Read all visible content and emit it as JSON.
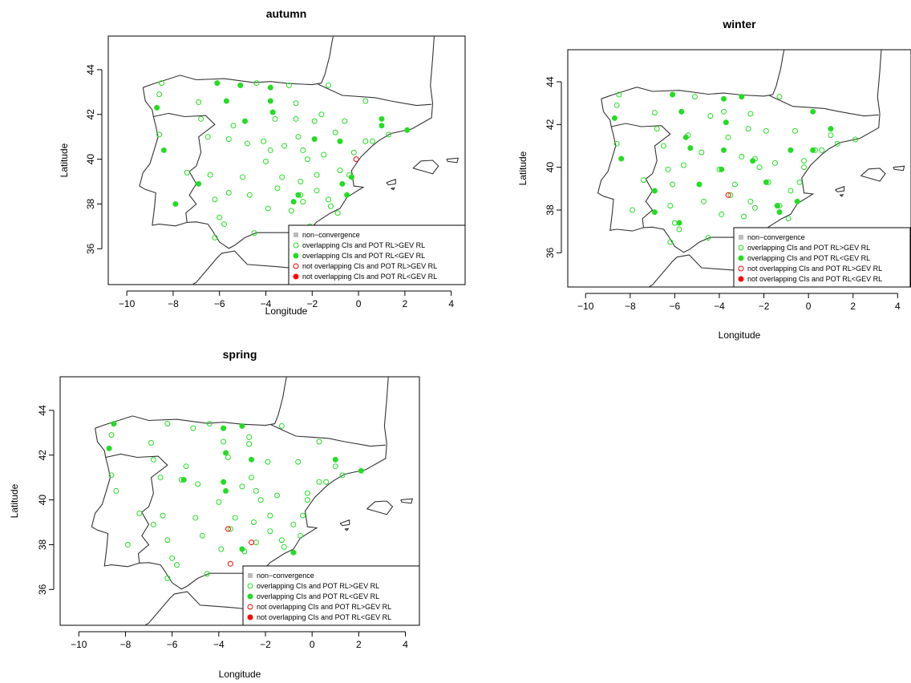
{
  "panels": [
    {
      "title": "autumn",
      "xlabel": "Longitude",
      "ylabel": "Latitude",
      "xlim": [
        -10.8,
        4.6
      ],
      "ylim": [
        34.4,
        45.5
      ],
      "xticks": [
        "−10",
        "−8",
        "−6",
        "−4",
        "−2",
        "0",
        "2",
        "4"
      ],
      "yticks": [
        "36",
        "38",
        "40",
        "42",
        "44"
      ],
      "legend": [
        "non−convergence",
        "overlapping CIs and POT RL>GEV RL",
        "overlapping CIs and POT RL<GEV RL",
        "not overlapping CIs and POT RL>GEV RL",
        "not overlapping CIs and POT RL<GEV RL"
      ],
      "legend_position": "bottom-right",
      "stations": {
        "overlap_pot_gt_gev": [
          [
            -8.5,
            43.4
          ],
          [
            -8.6,
            42.9
          ],
          [
            -8.6,
            41.1
          ],
          [
            -7.4,
            39.4
          ],
          [
            -6.9,
            42.55
          ],
          [
            -6.8,
            41.8
          ],
          [
            -6.5,
            41.0
          ],
          [
            -6.4,
            39.3
          ],
          [
            -6.2,
            38.2
          ],
          [
            -6.0,
            37.4
          ],
          [
            -6.2,
            36.5
          ],
          [
            -5.8,
            37.1
          ],
          [
            -5.6,
            40.9
          ],
          [
            -5.4,
            41.5
          ],
          [
            -5.0,
            39.2
          ],
          [
            -4.8,
            40.7
          ],
          [
            -4.7,
            38.4
          ],
          [
            -4.5,
            36.7
          ],
          [
            -4.4,
            43.4
          ],
          [
            -4.1,
            40.8
          ],
          [
            -4.0,
            39.9
          ],
          [
            -3.9,
            37.8
          ],
          [
            -3.8,
            40.4
          ],
          [
            -3.6,
            41.8
          ],
          [
            -3.5,
            38.7
          ],
          [
            -3.3,
            39.2
          ],
          [
            -3.2,
            40.6
          ],
          [
            -3.0,
            43.3
          ],
          [
            -2.9,
            37.7
          ],
          [
            -2.7,
            42.5
          ],
          [
            -2.7,
            41.8
          ],
          [
            -2.5,
            39.0
          ],
          [
            -2.4,
            40.4
          ],
          [
            -2.4,
            38.1
          ],
          [
            -2.2,
            40.0
          ],
          [
            -2.1,
            37.0
          ],
          [
            -1.9,
            41.7
          ],
          [
            -1.8,
            39.3
          ],
          [
            -1.8,
            38.6
          ],
          [
            -1.5,
            40.2
          ],
          [
            -1.3,
            38.2
          ],
          [
            -1.2,
            37.9
          ],
          [
            -1.0,
            41.2
          ],
          [
            -0.8,
            39.5
          ],
          [
            -0.9,
            37.6
          ],
          [
            -0.6,
            41.7
          ],
          [
            -0.4,
            39.3
          ],
          [
            -0.2,
            40.3
          ],
          [
            0.3,
            42.6
          ],
          [
            0.3,
            40.8
          ],
          [
            0.6,
            40.8
          ],
          [
            1.3,
            41.1
          ],
          [
            -1.3,
            43.3
          ],
          [
            -5.6,
            38.5
          ],
          [
            -2.5,
            38.4
          ],
          [
            -1.6,
            42.0
          ],
          [
            -2.6,
            41.0
          ]
        ],
        "overlap_pot_lt_gev": [
          [
            -8.7,
            42.3
          ],
          [
            -8.4,
            40.4
          ],
          [
            -7.9,
            38.0
          ],
          [
            -6.9,
            38.9
          ],
          [
            -6.1,
            43.4
          ],
          [
            -5.7,
            42.6
          ],
          [
            -5.1,
            43.3
          ],
          [
            -4.9,
            41.7
          ],
          [
            -3.8,
            43.2
          ],
          [
            -3.8,
            42.6
          ],
          [
            -3.7,
            42.1
          ],
          [
            -2.6,
            38.4
          ],
          [
            -2.8,
            38.1
          ],
          [
            -1.9,
            40.9
          ],
          [
            -0.8,
            40.8
          ],
          [
            -0.5,
            38.4
          ],
          [
            -0.7,
            38.9
          ],
          [
            -0.3,
            39.2
          ],
          [
            1.0,
            41.8
          ],
          [
            2.1,
            41.3
          ],
          [
            1.0,
            41.5
          ]
        ],
        "not_overlap_pot_gt_gev": [
          [
            -0.1,
            40.0
          ]
        ],
        "not_overlap_pot_lt_gev": []
      }
    },
    {
      "title": "winter",
      "xlabel": "Longitude",
      "ylabel": "Latitude",
      "xlim": [
        -10.8,
        4.6
      ],
      "ylim": [
        34.4,
        45.5
      ],
      "xticks": [
        "−10",
        "−8",
        "−6",
        "−4",
        "−2",
        "0",
        "2",
        "4"
      ],
      "yticks": [
        "36",
        "38",
        "40",
        "42",
        "44"
      ],
      "legend": [
        "non−convergence",
        "overlapping CIs and POT RL>GEV RL",
        "overlapping CIs and POT RL<GEV RL",
        "not overlapping CIs and POT RL>GEV RL",
        "not overlapping CIs and POT RL<GEV RL"
      ],
      "legend_position": "bottom-right",
      "stations": {
        "overlap_pot_gt_gev": [
          [
            -8.6,
            42.9
          ],
          [
            -8.6,
            41.1
          ],
          [
            -7.4,
            39.4
          ],
          [
            -7.9,
            38.0
          ],
          [
            -6.9,
            42.55
          ],
          [
            -6.8,
            41.8
          ],
          [
            -6.5,
            41.0
          ],
          [
            -6.2,
            38.2
          ],
          [
            -6.1,
            39.2
          ],
          [
            -6.0,
            37.4
          ],
          [
            -6.2,
            36.5
          ],
          [
            -5.8,
            37.1
          ],
          [
            -5.6,
            40.1
          ],
          [
            -5.4,
            41.5
          ],
          [
            -5.1,
            43.3
          ],
          [
            -4.8,
            40.7
          ],
          [
            -4.7,
            38.4
          ],
          [
            -4.5,
            36.7
          ],
          [
            -4.4,
            42.4
          ],
          [
            -4.0,
            39.9
          ],
          [
            -3.9,
            37.8
          ],
          [
            -3.8,
            42.6
          ],
          [
            -3.6,
            41.4
          ],
          [
            -3.5,
            38.7
          ],
          [
            -3.3,
            39.2
          ],
          [
            -3.0,
            40.5
          ],
          [
            -2.9,
            37.7
          ],
          [
            -2.7,
            41.8
          ],
          [
            -2.6,
            38.4
          ],
          [
            -2.4,
            40.4
          ],
          [
            -2.4,
            38.1
          ],
          [
            -2.2,
            40.0
          ],
          [
            -1.9,
            41.7
          ],
          [
            -1.8,
            39.3
          ],
          [
            -1.5,
            40.2
          ],
          [
            -1.3,
            38.2
          ],
          [
            -0.9,
            37.6
          ],
          [
            -0.6,
            41.7
          ],
          [
            -0.8,
            38.9
          ],
          [
            -0.4,
            39.3
          ],
          [
            -0.2,
            40.3
          ],
          [
            -0.2,
            40.0
          ],
          [
            0.3,
            40.8
          ],
          [
            0.6,
            40.8
          ],
          [
            1.3,
            41.1
          ],
          [
            1.0,
            41.5
          ],
          [
            2.1,
            41.3
          ],
          [
            -1.3,
            43.3
          ],
          [
            -8.5,
            43.4
          ],
          [
            -6.3,
            39.9
          ],
          [
            -2.6,
            42.5
          ]
        ],
        "overlap_pot_lt_gev": [
          [
            -8.7,
            42.3
          ],
          [
            -8.4,
            40.4
          ],
          [
            -6.9,
            38.9
          ],
          [
            -6.9,
            37.9
          ],
          [
            -6.1,
            43.4
          ],
          [
            -5.7,
            42.6
          ],
          [
            -5.5,
            41.4
          ],
          [
            -5.3,
            40.9
          ],
          [
            -4.9,
            39.2
          ],
          [
            -3.8,
            43.2
          ],
          [
            -3.7,
            42.1
          ],
          [
            -3.8,
            40.8
          ],
          [
            -3.9,
            39.9
          ],
          [
            -3.0,
            43.3
          ],
          [
            -1.9,
            39.3
          ],
          [
            -1.4,
            38.2
          ],
          [
            -1.3,
            37.9
          ],
          [
            -0.8,
            40.8
          ],
          [
            -0.5,
            38.4
          ],
          [
            1.0,
            41.8
          ],
          [
            0.2,
            40.8
          ],
          [
            0.2,
            42.6
          ],
          [
            -2.5,
            40.3
          ],
          [
            -5.8,
            37.4
          ]
        ],
        "not_overlap_pot_gt_gev": [
          [
            -3.6,
            38.7
          ]
        ],
        "not_overlap_pot_lt_gev": []
      }
    },
    {
      "title": "spring",
      "xlabel": "Longitude",
      "ylabel": "Latitude",
      "xlim": [
        -10.8,
        4.6
      ],
      "ylim": [
        34.4,
        45.5
      ],
      "xticks": [
        "−10",
        "−8",
        "−6",
        "−4",
        "−2",
        "0",
        "2",
        "4"
      ],
      "yticks": [
        "36",
        "38",
        "40",
        "42",
        "44"
      ],
      "legend": [
        "non−convergence",
        "overlapping CIs and POT RL>GEV RL",
        "overlapping CIs and POT RL<GEV RL",
        "not overlapping CIs and POT RL>GEV RL",
        "not overlapping CIs and POT RL<GEV RL"
      ],
      "legend_position": "bottom-right",
      "stations": {
        "overlap_pot_gt_gev": [
          [
            -8.6,
            42.9
          ],
          [
            -8.6,
            41.1
          ],
          [
            -8.4,
            40.4
          ],
          [
            -7.4,
            39.4
          ],
          [
            -7.9,
            38.0
          ],
          [
            -6.9,
            42.55
          ],
          [
            -6.8,
            41.8
          ],
          [
            -6.8,
            38.9
          ],
          [
            -6.5,
            41.0
          ],
          [
            -6.4,
            39.3
          ],
          [
            -6.2,
            43.4
          ],
          [
            -6.2,
            38.2
          ],
          [
            -6.0,
            37.4
          ],
          [
            -6.2,
            36.5
          ],
          [
            -5.8,
            37.1
          ],
          [
            -5.6,
            40.9
          ],
          [
            -5.4,
            41.5
          ],
          [
            -5.0,
            39.2
          ],
          [
            -4.9,
            40.7
          ],
          [
            -4.7,
            38.4
          ],
          [
            -4.5,
            36.7
          ],
          [
            -5.1,
            43.2
          ],
          [
            -4.4,
            43.4
          ],
          [
            -3.8,
            42.6
          ],
          [
            -4.0,
            39.9
          ],
          [
            -3.9,
            37.8
          ],
          [
            -3.6,
            41.9
          ],
          [
            -3.5,
            38.7
          ],
          [
            -3.3,
            39.2
          ],
          [
            -3.0,
            40.6
          ],
          [
            -2.9,
            37.7
          ],
          [
            -2.7,
            42.5
          ],
          [
            -2.5,
            39.0
          ],
          [
            -2.4,
            40.4
          ],
          [
            -2.4,
            38.1
          ],
          [
            -2.2,
            40.0
          ],
          [
            -1.9,
            41.7
          ],
          [
            -1.8,
            39.3
          ],
          [
            -1.8,
            38.6
          ],
          [
            -1.5,
            40.2
          ],
          [
            -1.3,
            38.2
          ],
          [
            -1.2,
            37.9
          ],
          [
            -0.6,
            41.7
          ],
          [
            -0.4,
            39.3
          ],
          [
            -0.2,
            40.3
          ],
          [
            -0.2,
            40.0
          ],
          [
            0.3,
            42.6
          ],
          [
            0.3,
            40.8
          ],
          [
            0.6,
            40.8
          ],
          [
            1.3,
            41.1
          ],
          [
            1.0,
            41.5
          ],
          [
            -1.3,
            43.3
          ],
          [
            -0.8,
            38.9
          ],
          [
            -0.5,
            38.4
          ],
          [
            -2.7,
            42.8
          ],
          [
            -2.6,
            41.0
          ]
        ],
        "overlap_pot_lt_gev": [
          [
            -8.5,
            43.4
          ],
          [
            -8.7,
            42.3
          ],
          [
            -5.5,
            40.9
          ],
          [
            -3.8,
            43.2
          ],
          [
            -3.7,
            42.1
          ],
          [
            -3.8,
            40.8
          ],
          [
            -3.7,
            40.4
          ],
          [
            -3.0,
            43.3
          ],
          [
            -2.6,
            41.8
          ],
          [
            -3.0,
            37.8
          ],
          [
            -0.8,
            37.65
          ],
          [
            1.0,
            41.8
          ],
          [
            2.1,
            41.3
          ]
        ],
        "not_overlap_pot_gt_gev": [
          [
            -3.6,
            38.7
          ],
          [
            -3.5,
            37.15
          ],
          [
            -2.6,
            38.1
          ]
        ],
        "not_overlap_pot_lt_gev": []
      }
    }
  ],
  "colors": {
    "overlap": "#22dd22",
    "not_overlap": "#ff0000",
    "non_convergence": "#bbbbbb",
    "coast": "#333333",
    "frame": "#000000"
  }
}
